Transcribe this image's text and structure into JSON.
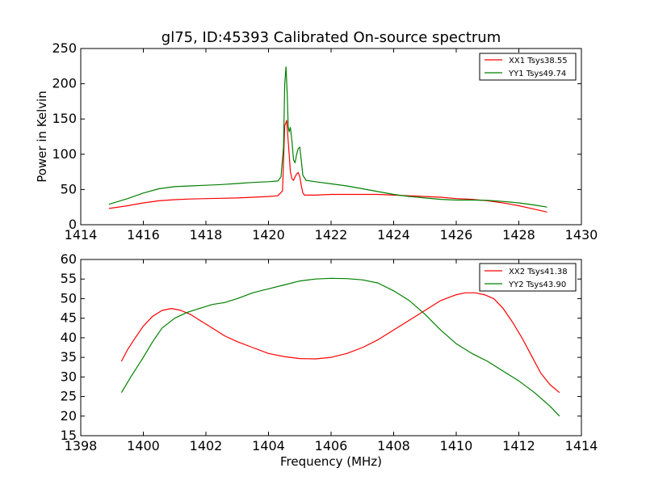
{
  "chart_data": [
    {
      "type": "line",
      "title": "gl75, ID:45393 Calibrated On-source spectrum",
      "xlabel": "",
      "ylabel": "Power in Kelvin",
      "xlim": [
        1414,
        1430
      ],
      "ylim": [
        0,
        250
      ],
      "xticks": [
        1414,
        1416,
        1418,
        1420,
        1422,
        1424,
        1426,
        1428,
        1430
      ],
      "yticks": [
        0,
        50,
        100,
        150,
        200,
        250
      ],
      "legend": "top-right",
      "grid": false,
      "series": [
        {
          "name": "XX1 Tsys38.55",
          "color": "#ff0000",
          "x": [
            1414.9,
            1415.5,
            1416.0,
            1416.5,
            1417.0,
            1417.5,
            1418.0,
            1418.5,
            1419.0,
            1419.5,
            1420.0,
            1420.3,
            1420.45,
            1420.52,
            1420.58,
            1420.62,
            1420.66,
            1420.7,
            1420.75,
            1420.8,
            1420.85,
            1420.9,
            1420.95,
            1421.0,
            1421.05,
            1421.1,
            1421.15,
            1421.3,
            1421.5,
            1422.0,
            1422.5,
            1423.0,
            1423.5,
            1424.0,
            1424.5,
            1425.0,
            1425.5,
            1426.0,
            1426.5,
            1427.0,
            1427.5,
            1428.0,
            1428.5,
            1428.9
          ],
          "y": [
            23,
            27,
            31,
            34,
            35.5,
            36.5,
            37,
            37.5,
            38,
            39,
            40,
            41,
            48,
            140,
            148,
            125,
            100,
            75,
            65,
            63,
            68,
            72,
            74,
            68,
            55,
            45,
            42,
            42,
            42,
            43,
            43,
            43,
            43,
            42,
            41,
            40,
            39,
            37,
            36,
            34,
            31,
            27,
            22,
            18
          ]
        },
        {
          "name": "YY1 Tsys49.74",
          "color": "#008000",
          "x": [
            1414.9,
            1415.5,
            1416.0,
            1416.5,
            1417.0,
            1417.5,
            1418.0,
            1418.5,
            1419.0,
            1419.5,
            1420.0,
            1420.3,
            1420.4,
            1420.48,
            1420.52,
            1420.56,
            1420.6,
            1420.63,
            1420.66,
            1420.7,
            1420.75,
            1420.8,
            1420.85,
            1420.9,
            1420.95,
            1421.0,
            1421.05,
            1421.1,
            1421.2,
            1421.5,
            1422.0,
            1422.5,
            1423.0,
            1423.5,
            1424.0,
            1424.5,
            1425.0,
            1425.5,
            1426.0,
            1426.5,
            1427.0,
            1427.5,
            1428.0,
            1428.5,
            1428.9
          ],
          "y": [
            29,
            37,
            45,
            51,
            54,
            55,
            56,
            57,
            58.5,
            60,
            61,
            62,
            68,
            110,
            200,
            224,
            185,
            140,
            132,
            138,
            118,
            92,
            88,
            100,
            108,
            110,
            90,
            70,
            63,
            61,
            58,
            55,
            51,
            47,
            43,
            40,
            38,
            36,
            35,
            35,
            34.5,
            33,
            31,
            28,
            25
          ]
        }
      ]
    },
    {
      "type": "line",
      "title": "",
      "xlabel": "Frequency (MHz)",
      "ylabel": "",
      "xlim": [
        1398,
        1414
      ],
      "ylim": [
        15,
        60
      ],
      "xticks": [
        1398,
        1400,
        1402,
        1404,
        1406,
        1408,
        1410,
        1412,
        1414
      ],
      "yticks": [
        15,
        20,
        25,
        30,
        35,
        40,
        45,
        50,
        55,
        60
      ],
      "legend": "top-right",
      "grid": false,
      "series": [
        {
          "name": "XX2 Tsys41.38",
          "color": "#ff0000",
          "x": [
            1399.3,
            1399.5,
            1399.7,
            1400.0,
            1400.3,
            1400.6,
            1400.9,
            1401.2,
            1401.5,
            1401.8,
            1402.2,
            1402.6,
            1403.0,
            1403.5,
            1404.0,
            1404.5,
            1405.0,
            1405.5,
            1406.0,
            1406.5,
            1407.0,
            1407.5,
            1408.0,
            1408.5,
            1409.0,
            1409.5,
            1410.0,
            1410.3,
            1410.6,
            1410.9,
            1411.2,
            1411.5,
            1411.8,
            1412.1,
            1412.4,
            1412.7,
            1413.0,
            1413.3
          ],
          "y": [
            34,
            37,
            39.5,
            43,
            45.5,
            47,
            47.5,
            47,
            46,
            44.5,
            42.5,
            40.5,
            39,
            37.5,
            36,
            35.2,
            34.7,
            34.6,
            35,
            36,
            37.5,
            39.5,
            42,
            44.5,
            47,
            49.5,
            51,
            51.5,
            51.5,
            51,
            50,
            47.5,
            44,
            40,
            35.5,
            31,
            28,
            26
          ]
        },
        {
          "name": "YY2 Tsys43.90",
          "color": "#008000",
          "x": [
            1399.3,
            1399.6,
            1400.0,
            1400.3,
            1400.6,
            1401.0,
            1401.4,
            1401.8,
            1402.2,
            1402.6,
            1403.0,
            1403.5,
            1404.0,
            1404.5,
            1405.0,
            1405.5,
            1406.0,
            1406.5,
            1407.0,
            1407.5,
            1408.0,
            1408.5,
            1409.0,
            1409.5,
            1410.0,
            1410.5,
            1411.0,
            1411.5,
            1412.0,
            1412.5,
            1413.0,
            1413.3
          ],
          "y": [
            26,
            30,
            35,
            39,
            42.5,
            45,
            46.5,
            47.5,
            48.5,
            49,
            50,
            51.5,
            52.5,
            53.5,
            54.5,
            55,
            55.2,
            55.1,
            54.8,
            54,
            52,
            49.5,
            46,
            42,
            38.5,
            36,
            34,
            31.5,
            29,
            26,
            22.5,
            20
          ]
        }
      ]
    }
  ]
}
